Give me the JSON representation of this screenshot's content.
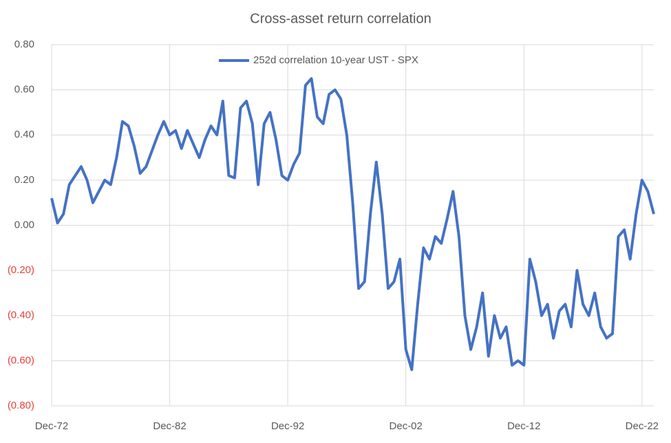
{
  "chart_data": {
    "type": "line",
    "title": "Cross-asset return correlation",
    "x": [
      "Dec-72",
      "Jun-73",
      "Dec-73",
      "Jun-74",
      "Dec-74",
      "Jun-75",
      "Dec-75",
      "Jun-76",
      "Dec-76",
      "Jun-77",
      "Dec-77",
      "Jun-78",
      "Dec-78",
      "Jun-79",
      "Dec-79",
      "Jun-80",
      "Dec-80",
      "Jun-81",
      "Dec-81",
      "Jun-82",
      "Dec-82",
      "Jun-83",
      "Dec-83",
      "Jun-84",
      "Dec-84",
      "Jun-85",
      "Dec-85",
      "Jun-86",
      "Dec-86",
      "Jun-87",
      "Dec-87",
      "Jun-88",
      "Dec-88",
      "Jun-89",
      "Dec-89",
      "Jun-90",
      "Dec-90",
      "Jun-91",
      "Dec-91",
      "Jun-92",
      "Dec-92",
      "Jun-93",
      "Dec-93",
      "Jun-94",
      "Dec-94",
      "Jun-95",
      "Dec-95",
      "Jun-96",
      "Dec-96",
      "Jun-97",
      "Dec-97",
      "Jun-98",
      "Dec-98",
      "Jun-99",
      "Dec-99",
      "Jun-00",
      "Dec-00",
      "Jun-01",
      "Dec-01",
      "Jun-02",
      "Dec-02",
      "Jun-03",
      "Dec-03",
      "Jun-04",
      "Dec-04",
      "Jun-05",
      "Dec-05",
      "Jun-06",
      "Dec-06",
      "Jun-07",
      "Dec-07",
      "Jun-08",
      "Dec-08",
      "Jun-09",
      "Dec-09",
      "Jun-10",
      "Dec-10",
      "Jun-11",
      "Dec-11",
      "Jun-12",
      "Dec-12",
      "Jun-13",
      "Dec-13",
      "Jun-14",
      "Dec-14",
      "Jun-15",
      "Dec-15",
      "Jun-16",
      "Dec-16",
      "Jun-17",
      "Dec-17",
      "Jun-18",
      "Dec-18",
      "Jun-19",
      "Dec-19",
      "Jun-20",
      "Dec-20",
      "Jun-21",
      "Dec-21",
      "Jun-22",
      "Dec-22",
      "Jun-23",
      "Dec-23"
    ],
    "series": [
      {
        "name": "252d correlation 10-year UST - SPX",
        "color": "#4472c4",
        "values": [
          0.12,
          0.01,
          0.05,
          0.18,
          0.22,
          0.26,
          0.2,
          0.1,
          0.15,
          0.2,
          0.18,
          0.3,
          0.46,
          0.44,
          0.35,
          0.23,
          0.26,
          0.33,
          0.4,
          0.46,
          0.4,
          0.42,
          0.34,
          0.42,
          0.36,
          0.3,
          0.38,
          0.44,
          0.4,
          0.55,
          0.22,
          0.21,
          0.52,
          0.55,
          0.45,
          0.18,
          0.45,
          0.5,
          0.38,
          0.22,
          0.2,
          0.27,
          0.32,
          0.62,
          0.65,
          0.48,
          0.45,
          0.58,
          0.6,
          0.56,
          0.4,
          0.1,
          -0.28,
          -0.25,
          0.05,
          0.28,
          0.05,
          -0.28,
          -0.25,
          -0.15,
          -0.55,
          -0.64,
          -0.35,
          -0.1,
          -0.15,
          -0.05,
          -0.08,
          0.03,
          0.15,
          -0.05,
          -0.4,
          -0.55,
          -0.45,
          -0.3,
          -0.58,
          -0.4,
          -0.5,
          -0.45,
          -0.62,
          -0.6,
          -0.62,
          -0.15,
          -0.25,
          -0.4,
          -0.35,
          -0.5,
          -0.38,
          -0.35,
          -0.45,
          -0.2,
          -0.35,
          -0.4,
          -0.3,
          -0.45,
          -0.5,
          -0.48,
          -0.05,
          -0.02,
          -0.15,
          0.05,
          0.2,
          0.15,
          0.05
        ]
      }
    ],
    "xlim": [
      "Dec-72",
      "Dec-23"
    ],
    "xticks": [
      "Dec-72",
      "Dec-82",
      "Dec-92",
      "Dec-02",
      "Dec-12",
      "Dec-22"
    ],
    "ylim": [
      -0.8,
      0.8
    ],
    "yticks": [
      {
        "value": 0.8,
        "label": "0.80"
      },
      {
        "value": 0.6,
        "label": "0.60"
      },
      {
        "value": 0.4,
        "label": "0.40"
      },
      {
        "value": 0.2,
        "label": "0.20"
      },
      {
        "value": 0,
        "label": "0.00"
      },
      {
        "value": -0.2,
        "label": "(0.20)"
      },
      {
        "value": -0.4,
        "label": "(0.40)"
      },
      {
        "value": -0.6,
        "label": "(0.60)"
      },
      {
        "value": -0.8,
        "label": "(0.80)"
      }
    ],
    "negative_tick_color": "#e8423a",
    "grid": true,
    "legend": "top"
  }
}
